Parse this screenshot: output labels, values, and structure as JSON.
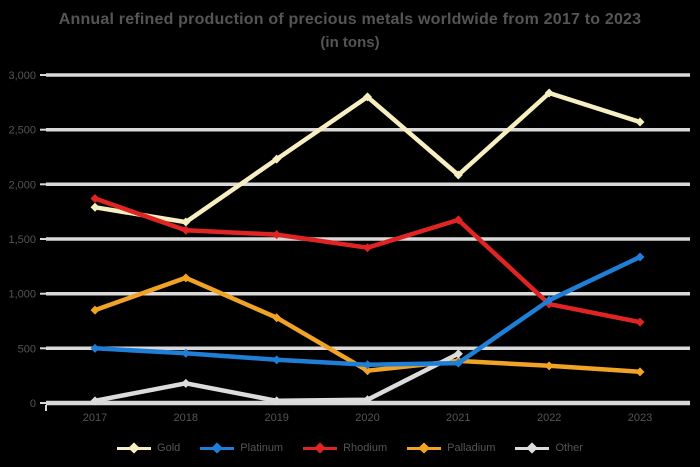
{
  "title": {
    "line1": "Annual refined production of precious metals worldwide from 2017 to 2023",
    "line2": "(in tons)"
  },
  "colors": {
    "background": "#000000",
    "gridline": "#d9d9d9",
    "text": "#555555"
  },
  "chart_data": {
    "type": "line",
    "title": "Annual refined production of precious metals worldwide from 2017 to 2023 (in tons)",
    "categories": [
      "2017",
      "2018",
      "2019",
      "2020",
      "2021",
      "2022",
      "2023"
    ],
    "series": [
      {
        "name": "Gold",
        "color": "#f7eec2",
        "values": [
          1790,
          1655,
          2230,
          2800,
          2085,
          2835,
          2570
        ]
      },
      {
        "name": "Platinum",
        "color": "#1f7ed6",
        "values": [
          500,
          455,
          395,
          350,
          365,
          940,
          1335
        ]
      },
      {
        "name": "Rhodium",
        "color": "#e02424",
        "values": [
          1870,
          1580,
          1540,
          1420,
          1675,
          905,
          740
        ]
      },
      {
        "name": "Palladium",
        "color": "#f0a325",
        "values": [
          850,
          1145,
          780,
          295,
          385,
          340,
          285
        ]
      },
      {
        "name": "Other",
        "color": "#dcdcdc",
        "values": [
          20,
          180,
          20,
          30,
          450,
          null,
          null
        ]
      }
    ],
    "xlabel": "",
    "ylabel": "",
    "ylim": [
      0,
      3000
    ],
    "ytick_step": 500,
    "ytick_labels": [
      "0",
      "500",
      "1,000",
      "1,500",
      "2,000",
      "2,500",
      "3,000"
    ],
    "grid": "horizontal",
    "legend_position": "bottom",
    "marker": "diamond"
  }
}
